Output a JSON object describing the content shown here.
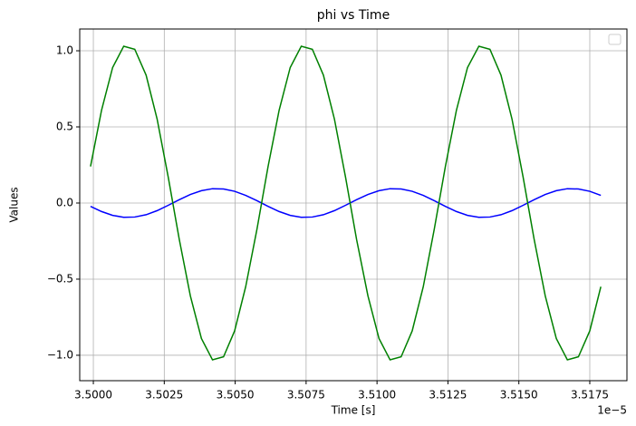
{
  "chart_data": {
    "type": "line",
    "title": "phi vs Time",
    "xlabel": "Time [s]",
    "ylabel": "Values",
    "x_offset_label": "1e−5",
    "x": [
      3.4999,
      3.50029,
      3.50068,
      3.50107,
      3.50146,
      3.50186,
      3.50225,
      3.50264,
      3.50303,
      3.50342,
      3.50381,
      3.5042,
      3.50459,
      3.50498,
      3.50537,
      3.50577,
      3.50616,
      3.50655,
      3.50694,
      3.50733,
      3.50772,
      3.50811,
      3.5085,
      3.50889,
      3.50928,
      3.50968,
      3.51007,
      3.51046,
      3.51085,
      3.51124,
      3.51163,
      3.51202,
      3.51241,
      3.5128,
      3.51319,
      3.51359,
      3.51398,
      3.51437,
      3.51476,
      3.51515,
      3.51554,
      3.51593,
      3.51632,
      3.51671,
      3.5171,
      3.5175,
      3.51789
    ],
    "series": [
      {
        "color": "#0000ff",
        "values": [
          -0.022,
          -0.056,
          -0.081,
          -0.094,
          -0.092,
          -0.077,
          -0.05,
          -0.015,
          0.022,
          0.056,
          0.081,
          0.094,
          0.092,
          0.077,
          0.05,
          0.015,
          -0.022,
          -0.056,
          -0.081,
          -0.094,
          -0.092,
          -0.077,
          -0.05,
          -0.015,
          0.022,
          0.056,
          0.081,
          0.094,
          0.092,
          0.077,
          0.05,
          0.015,
          -0.022,
          -0.056,
          -0.081,
          -0.094,
          -0.092,
          -0.077,
          -0.05,
          -0.015,
          0.022,
          0.056,
          0.081,
          0.094,
          0.092,
          0.077,
          0.05
        ]
      },
      {
        "color": "#008000",
        "values": [
          0.24,
          0.61,
          0.89,
          1.03,
          1.01,
          0.84,
          0.55,
          0.17,
          -0.24,
          -0.61,
          -0.89,
          -1.03,
          -1.01,
          -0.84,
          -0.55,
          -0.17,
          0.24,
          0.61,
          0.89,
          1.03,
          1.01,
          0.84,
          0.55,
          0.17,
          -0.24,
          -0.61,
          -0.89,
          -1.03,
          -1.01,
          -0.84,
          -0.55,
          -0.17,
          0.24,
          0.61,
          0.89,
          1.03,
          1.01,
          0.84,
          0.55,
          0.17,
          -0.24,
          -0.61,
          -0.89,
          -1.03,
          -1.01,
          -0.84,
          -0.55
        ]
      }
    ],
    "xlim": [
      3.49952,
      3.51881
    ],
    "ylim": [
      -1.167,
      1.143
    ],
    "xticks": [
      {
        "value": 3.5,
        "label": "3.5000"
      },
      {
        "value": 3.5025,
        "label": "3.5025"
      },
      {
        "value": 3.505,
        "label": "3.5050"
      },
      {
        "value": 3.5075,
        "label": "3.5075"
      },
      {
        "value": 3.51,
        "label": "3.5100"
      },
      {
        "value": 3.5125,
        "label": "3.5125"
      },
      {
        "value": 3.515,
        "label": "3.5150"
      },
      {
        "value": 3.5175,
        "label": "3.5175"
      }
    ],
    "yticks": [
      {
        "value": -1,
        "label": "−1.0"
      },
      {
        "value": -0.5,
        "label": "−0.5"
      },
      {
        "value": 0,
        "label": "0.0"
      },
      {
        "value": 0.5,
        "label": "0.5"
      },
      {
        "value": 1,
        "label": "1.0"
      }
    ],
    "grid": true,
    "legend": "upper right"
  }
}
